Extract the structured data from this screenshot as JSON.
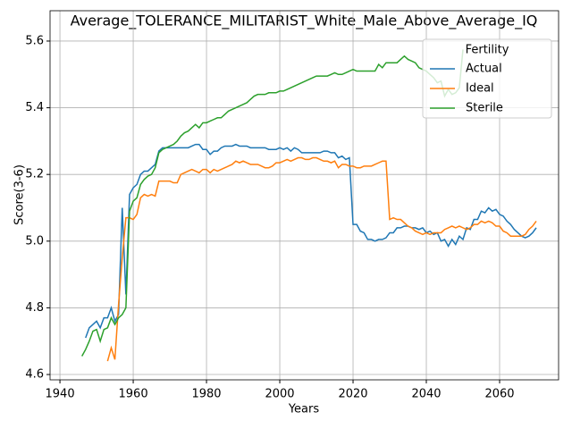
{
  "chart_data": {
    "type": "line",
    "title": "Average_TOLERANCE_MILITARIST_White_Male_Above_Average_IQ",
    "xlabel": "Years",
    "ylabel": "Score(3-6)",
    "legend_title": "Fertility",
    "legend": "upper right",
    "grid": true,
    "xlim": [
      1937.3,
      2076.1
    ],
    "ylim": [
      4.584,
      5.691
    ],
    "xticks": [
      1940,
      1960,
      1980,
      2000,
      2020,
      2040,
      2060
    ],
    "yticks": [
      4.6,
      4.8,
      {
        "value": 5,
        "label": "5.0"
      },
      5.2,
      5.4,
      5.6
    ],
    "x": [
      1946,
      1947,
      1948,
      1949,
      1950,
      1951,
      1952,
      1953,
      1954,
      1955,
      1956,
      1957,
      1958,
      1959,
      1960,
      1961,
      1962,
      1963,
      1964,
      1965,
      1966,
      1967,
      1968,
      1969,
      1970,
      1971,
      1972,
      1973,
      1974,
      1975,
      1976,
      1977,
      1978,
      1979,
      1980,
      1981,
      1982,
      1983,
      1984,
      1985,
      1986,
      1987,
      1988,
      1989,
      1990,
      1991,
      1992,
      1993,
      1994,
      1995,
      1996,
      1997,
      1998,
      1999,
      2000,
      2001,
      2002,
      2003,
      2004,
      2005,
      2006,
      2007,
      2008,
      2009,
      2010,
      2011,
      2012,
      2013,
      2014,
      2015,
      2016,
      2017,
      2018,
      2019,
      2020,
      2021,
      2022,
      2023,
      2024,
      2025,
      2026,
      2027,
      2028,
      2029,
      2030,
      2031,
      2032,
      2033,
      2034,
      2035,
      2036,
      2037,
      2038,
      2039,
      2040,
      2041,
      2042,
      2043,
      2044,
      2045,
      2046,
      2047,
      2048,
      2049,
      2050,
      2051,
      2052,
      2053,
      2054,
      2055,
      2056,
      2057,
      2058,
      2059,
      2060,
      2061,
      2062,
      2063,
      2064,
      2065,
      2066,
      2067,
      2068,
      2069,
      2070
    ],
    "series": [
      {
        "name": "Actual",
        "color": "#1f77b4",
        "values": [
          null,
          4.71,
          4.74,
          4.75,
          4.76,
          4.74,
          4.77,
          4.77,
          4.8,
          4.76,
          4.78,
          5.1,
          4.84,
          5.14,
          5.16,
          5.17,
          5.2,
          5.21,
          5.21,
          5.22,
          5.23,
          5.27,
          5.28,
          5.28,
          5.28,
          5.28,
          5.28,
          5.28,
          5.28,
          5.28,
          5.285,
          5.29,
          5.29,
          5.275,
          5.275,
          5.26,
          5.27,
          5.27,
          5.28,
          5.285,
          5.285,
          5.285,
          5.29,
          5.285,
          5.285,
          5.285,
          5.28,
          5.28,
          5.28,
          5.28,
          5.28,
          5.275,
          5.275,
          5.275,
          5.28,
          5.275,
          5.28,
          5.27,
          5.28,
          5.275,
          5.265,
          5.265,
          5.265,
          5.265,
          5.265,
          5.265,
          5.27,
          5.27,
          5.265,
          5.265,
          5.25,
          5.255,
          5.245,
          5.25,
          5.05,
          5.05,
          5.03,
          5.025,
          5.005,
          5.005,
          5.0,
          5.005,
          5.005,
          5.01,
          5.025,
          5.025,
          5.04,
          5.04,
          5.045,
          5.045,
          5.04,
          5.04,
          5.035,
          5.04,
          5.025,
          5.03,
          5.02,
          5.025,
          5.0,
          5.005,
          4.985,
          5.005,
          4.99,
          5.015,
          5.005,
          5.04,
          5.035,
          5.065,
          5.065,
          5.09,
          5.085,
          5.1,
          5.09,
          5.095,
          5.08,
          5.075,
          5.06,
          5.05,
          5.035,
          5.025,
          5.015,
          5.01,
          5.015,
          5.025,
          5.04
        ]
      },
      {
        "name": "Ideal",
        "color": "#ff7f0e",
        "values": [
          null,
          null,
          null,
          null,
          null,
          null,
          null,
          4.64,
          4.68,
          4.645,
          4.81,
          4.95,
          5.07,
          5.07,
          5.065,
          5.08,
          5.13,
          5.14,
          5.135,
          5.14,
          5.135,
          5.18,
          5.18,
          5.18,
          5.18,
          5.175,
          5.175,
          5.2,
          5.205,
          5.21,
          5.215,
          5.21,
          5.205,
          5.215,
          5.215,
          5.205,
          5.215,
          5.21,
          5.215,
          5.22,
          5.225,
          5.23,
          5.24,
          5.235,
          5.24,
          5.235,
          5.23,
          5.23,
          5.23,
          5.225,
          5.22,
          5.22,
          5.225,
          5.235,
          5.235,
          5.24,
          5.245,
          5.24,
          5.245,
          5.25,
          5.25,
          5.245,
          5.245,
          5.25,
          5.25,
          5.245,
          5.24,
          5.24,
          5.235,
          5.24,
          5.22,
          5.23,
          5.23,
          5.225,
          5.225,
          5.22,
          5.22,
          5.225,
          5.225,
          5.225,
          5.23,
          5.235,
          5.24,
          5.24,
          5.065,
          5.07,
          5.065,
          5.065,
          5.055,
          5.045,
          5.04,
          5.03,
          5.025,
          5.02,
          5.025,
          5.02,
          5.025,
          5.025,
          5.025,
          5.035,
          5.04,
          5.045,
          5.04,
          5.045,
          5.04,
          5.035,
          5.04,
          5.05,
          5.05,
          5.06,
          5.055,
          5.06,
          5.055,
          5.045,
          5.045,
          5.03,
          5.025,
          5.015,
          5.015,
          5.015,
          5.015,
          5.02,
          5.035,
          5.045,
          5.06
        ]
      },
      {
        "name": "Sterile",
        "color": "#2ca02c",
        "values": [
          4.655,
          4.675,
          4.7,
          4.73,
          4.735,
          4.7,
          4.735,
          4.74,
          4.77,
          4.75,
          4.77,
          4.78,
          4.8,
          5.09,
          5.12,
          5.13,
          5.17,
          5.185,
          5.195,
          5.2,
          5.22,
          5.265,
          5.275,
          5.28,
          5.285,
          5.29,
          5.3,
          5.315,
          5.325,
          5.33,
          5.34,
          5.35,
          5.34,
          5.355,
          5.355,
          5.36,
          5.365,
          5.37,
          5.37,
          5.38,
          5.39,
          5.395,
          5.4,
          5.405,
          5.41,
          5.415,
          5.425,
          5.435,
          5.44,
          5.44,
          5.44,
          5.445,
          5.445,
          5.445,
          5.45,
          5.45,
          5.455,
          5.46,
          5.465,
          5.47,
          5.475,
          5.48,
          5.485,
          5.49,
          5.495,
          5.495,
          5.495,
          5.495,
          5.5,
          5.505,
          5.5,
          5.5,
          5.505,
          5.51,
          5.515,
          5.51,
          5.51,
          5.51,
          5.51,
          5.51,
          5.51,
          5.53,
          5.52,
          5.535,
          5.535,
          5.535,
          5.535,
          5.545,
          5.555,
          5.545,
          5.54,
          5.535,
          5.52,
          5.515,
          5.51,
          5.5,
          5.49,
          5.475,
          5.48,
          5.435,
          5.455,
          5.44,
          5.445,
          5.46,
          5.575,
          null,
          null,
          null,
          null,
          null,
          null,
          null,
          null,
          null,
          null,
          null,
          null,
          null,
          null,
          null,
          null,
          null,
          null,
          null,
          null
        ]
      }
    ]
  }
}
